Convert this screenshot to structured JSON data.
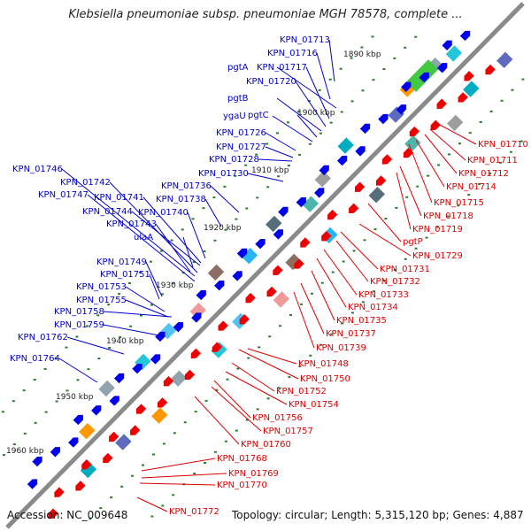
{
  "title": "Klebsiella pneumoniae subsp. pneumoniae MGH 78578, complete ...",
  "footer": {
    "accession": "Accession: NC_009648",
    "topology": "Topology: circular; Length: 5,315,120 bp; Genes: 4,887"
  },
  "colors": {
    "backbone": "#8a8a8a",
    "forward_label": "#0000cc",
    "reverse_label": "#dd0000",
    "forward_arrow": "#0000ee",
    "reverse_arrow": "#ee0000",
    "tick": "#2e7d32"
  },
  "kbp_labels": [
    "1890 kbp",
    "1900 kbp",
    "1910 kbp",
    "1920 kbp",
    "1930 kbp",
    "1940 kbp",
    "1950 kbp",
    "1960 kbp"
  ],
  "forward_genes": [
    "KPN_01713",
    "KPN_01716",
    "pgtA",
    "KPN_01717",
    "KPN_01720",
    "pgtB",
    "ygaU",
    "pgtC",
    "KPN_01726",
    "KPN_01727",
    "KPN_01728",
    "KPN_01730",
    "KPN_01746",
    "KPN_01742",
    "KPN_01736",
    "KPN_01747",
    "KPN_01741",
    "KPN_01738",
    "KPN_01744",
    "KPN_01740",
    "KPN_01743",
    "ulaA",
    "KPN_01749",
    "KPN_01751",
    "KPN_01753",
    "KPN_01755",
    "KPN_01758",
    "KPN_01759",
    "KPN_01762",
    "KPN_01764"
  ],
  "reverse_genes": [
    "KPN_01710",
    "KPN_01711",
    "KPN_01712",
    "KPN_01714",
    "KPN_01715",
    "KPN_01718",
    "KPN_01719",
    "pgtP",
    "KPN_01729",
    "KPN_01731",
    "KPN_01732",
    "KPN_01733",
    "KPN_01734",
    "KPN_01735",
    "KPN_01737",
    "KPN_01739",
    "KPN_01748",
    "KPN_01750",
    "KPN_01752",
    "KPN_01754",
    "KPN_01756",
    "KPN_01757",
    "KPN_01760",
    "KPN_01768",
    "KPN_01769",
    "KPN_01770",
    "KPN_01772"
  ]
}
